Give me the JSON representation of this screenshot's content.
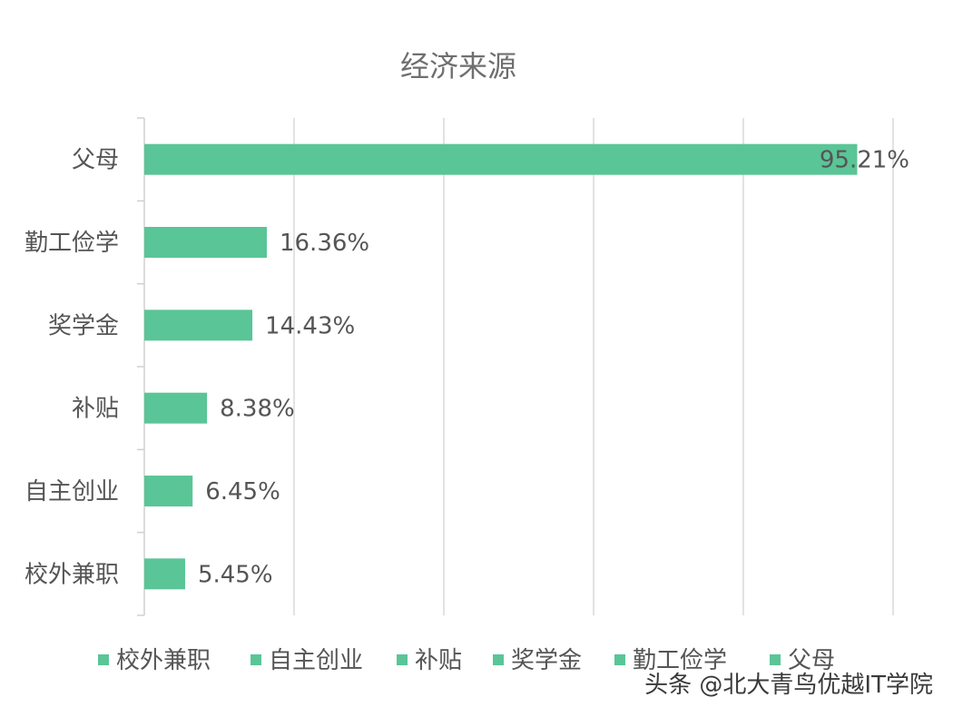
{
  "chart_data": {
    "type": "bar",
    "orientation": "horizontal",
    "title": "经济来源",
    "categories": [
      "父母",
      "勤工俭学",
      "奖学金",
      "补贴",
      "自主创业",
      "校外兼职"
    ],
    "values": [
      95.21,
      16.36,
      14.43,
      8.38,
      6.45,
      5.45
    ],
    "value_labels": [
      "95.21%",
      "16.36%",
      "14.43%",
      "8.38%",
      "6.45%",
      "5.45%"
    ],
    "xlim": [
      0,
      100
    ],
    "grid": true,
    "legend_position": "bottom",
    "legend_entries": [
      "校外兼职",
      "自主创业",
      "补贴",
      "奖学金",
      "勤工俭学",
      "父母"
    ],
    "bar_color": "#5ac597"
  },
  "watermark": "头条 @北大青鸟优越IT学院"
}
